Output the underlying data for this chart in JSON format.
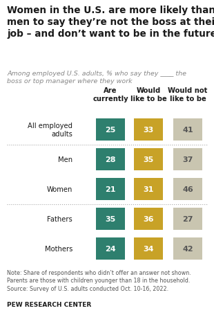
{
  "title": "Women in the U.S. are more likely than\nmen to say they’re not the boss at their\njob – and don’t want to be in the future",
  "subtitle": "Among employed U.S. adults, % who say they ____ the\nboss or top manager where they work",
  "col_headers": [
    "Are\ncurrently",
    "Would\nlike to be",
    "Would not\nlike to be"
  ],
  "categories": [
    "All employed\nadults",
    "Men",
    "Women",
    "Fathers",
    "Mothers"
  ],
  "values": [
    [
      25,
      33,
      41
    ],
    [
      28,
      35,
      37
    ],
    [
      21,
      31,
      46
    ],
    [
      35,
      36,
      27
    ],
    [
      24,
      34,
      42
    ]
  ],
  "bar_colors": [
    "#2e7f6e",
    "#c8a227",
    "#c9c5b0"
  ],
  "bar_text_colors": [
    "#ffffff",
    "#ffffff",
    "#555555"
  ],
  "note": "Note: Share of respondents who didn’t offer an answer not shown.\nParents are those with children younger than 18 in the household.\nSource: Survey of U.S. adults conducted Oct. 10-16, 2022.",
  "source_label": "PEW RESEARCH CENTER",
  "bg_color": "#ffffff",
  "divider_after_rows": [
    0,
    2
  ],
  "title_fontsize": 9.8,
  "subtitle_fontsize": 6.8,
  "header_fontsize": 7.2,
  "cat_fontsize": 7.2,
  "val_fontsize": 8.0,
  "note_fontsize": 5.8,
  "source_fontsize": 6.5
}
